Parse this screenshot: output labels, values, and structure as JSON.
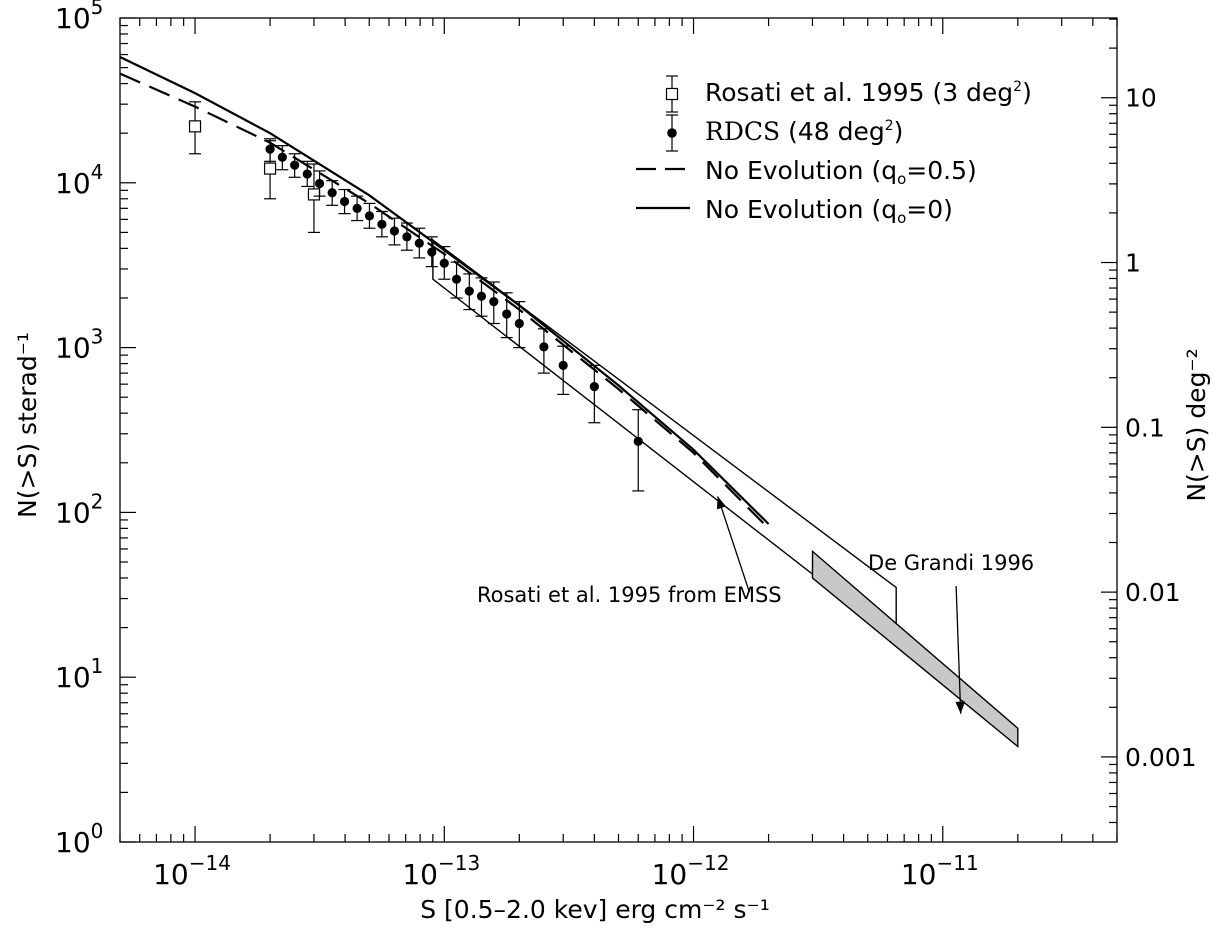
{
  "chart_data": {
    "type": "scatter",
    "x_scale": "log",
    "y_scale": "log",
    "xlim": [
      5e-15,
      5e-11
    ],
    "ylim": [
      1,
      100000
    ],
    "y2lim_deg": [
      0.000304617,
      30.4617
    ],
    "xlabel": "S [0.5–2.0 kev] erg cm⁻² s⁻¹",
    "ylabel": "N(>S) sterad⁻¹",
    "y2label": "N(>S) deg⁻²",
    "x_tick_labels": [
      {
        "value": 1e-14,
        "base": "10",
        "exp": "−14"
      },
      {
        "value": 1e-13,
        "base": "10",
        "exp": "−13"
      },
      {
        "value": 1e-12,
        "base": "10",
        "exp": "−12"
      },
      {
        "value": 1e-11,
        "base": "10",
        "exp": "−11"
      }
    ],
    "y_tick_labels": [
      {
        "value": 1,
        "base": "10",
        "exp": "0"
      },
      {
        "value": 10,
        "base": "10",
        "exp": "1"
      },
      {
        "value": 100,
        "base": "10",
        "exp": "2"
      },
      {
        "value": 1000,
        "base": "10",
        "exp": "3"
      },
      {
        "value": 10000,
        "base": "10",
        "exp": "4"
      },
      {
        "value": 100000,
        "base": "10",
        "exp": "5"
      }
    ],
    "y2_tick_labels": [
      {
        "value": 0.001,
        "label": "0.001"
      },
      {
        "value": 0.01,
        "label": "0.01"
      },
      {
        "value": 0.1,
        "label": "0.1"
      },
      {
        "value": 1,
        "label": "1"
      },
      {
        "value": 10,
        "label": "10"
      }
    ],
    "legend_position": "top-right",
    "legend": [
      {
        "label_main": "Rosati et al. 1995 (3 deg",
        "label_sup": "2",
        "label_end": ")",
        "marker": "open-square-errorbar"
      },
      {
        "label_serif": "RDCS",
        "label_main": " (48 deg",
        "label_sup": "2",
        "label_end": ")",
        "marker": "filled-circle-errorbar"
      },
      {
        "label_main": "No Evolution (q",
        "label_sub": "o",
        "label_end": "=0.5)",
        "line": "dashed"
      },
      {
        "label_main": "No Evolution (q",
        "label_sub": "o",
        "label_end": "=0)",
        "line": "solid"
      }
    ],
    "series": [
      {
        "name": "Rosati et al. 1995 (3 deg²)",
        "marker": "open-square",
        "points": [
          {
            "x": 1e-14,
            "y": 22000,
            "ylo": 15000,
            "yhi": 31000
          },
          {
            "x": 2e-14,
            "y": 12200,
            "ylo": 8000,
            "yhi": 18000
          },
          {
            "x": 3e-14,
            "y": 8500,
            "ylo": 5000,
            "yhi": 13000
          }
        ]
      },
      {
        "name": "RDCS (48 deg²)",
        "marker": "filled-circle",
        "points": [
          {
            "x": 2e-14,
            "y": 16000,
            "ylo": 13500,
            "yhi": 18500
          },
          {
            "x": 2.24e-14,
            "y": 14300,
            "ylo": 12000,
            "yhi": 16800
          },
          {
            "x": 2.51e-14,
            "y": 12800,
            "ylo": 10800,
            "yhi": 15000
          },
          {
            "x": 2.82e-14,
            "y": 11300,
            "ylo": 9500,
            "yhi": 13500
          },
          {
            "x": 3.16e-14,
            "y": 9900,
            "ylo": 8300,
            "yhi": 11800
          },
          {
            "x": 3.55e-14,
            "y": 8700,
            "ylo": 7300,
            "yhi": 10300
          },
          {
            "x": 3.98e-14,
            "y": 7700,
            "ylo": 6500,
            "yhi": 9100
          },
          {
            "x": 4.47e-14,
            "y": 7000,
            "ylo": 5900,
            "yhi": 8300
          },
          {
            "x": 5.01e-14,
            "y": 6300,
            "ylo": 5300,
            "yhi": 7500
          },
          {
            "x": 5.62e-14,
            "y": 5600,
            "ylo": 4700,
            "yhi": 6700
          },
          {
            "x": 6.31e-14,
            "y": 5100,
            "ylo": 4200,
            "yhi": 6100
          },
          {
            "x": 7.08e-14,
            "y": 4700,
            "ylo": 3900,
            "yhi": 5700
          },
          {
            "x": 7.94e-14,
            "y": 4300,
            "ylo": 3500,
            "yhi": 5300
          },
          {
            "x": 8.91e-14,
            "y": 3800,
            "ylo": 3100,
            "yhi": 4700
          },
          {
            "x": 1e-13,
            "y": 3250,
            "ylo": 2600,
            "yhi": 4100
          },
          {
            "x": 1.12e-13,
            "y": 2600,
            "ylo": 2000,
            "yhi": 3300
          },
          {
            "x": 1.26e-13,
            "y": 2200,
            "ylo": 1700,
            "yhi": 2800
          },
          {
            "x": 1.41e-13,
            "y": 2050,
            "ylo": 1550,
            "yhi": 2650
          },
          {
            "x": 1.58e-13,
            "y": 1900,
            "ylo": 1400,
            "yhi": 2500
          },
          {
            "x": 1.78e-13,
            "y": 1600,
            "ylo": 1150,
            "yhi": 2150
          },
          {
            "x": 2e-13,
            "y": 1400,
            "ylo": 1000,
            "yhi": 1900
          },
          {
            "x": 2.51e-13,
            "y": 1010,
            "ylo": 700,
            "yhi": 1300
          },
          {
            "x": 3e-13,
            "y": 780,
            "ylo": 520,
            "yhi": 1020
          },
          {
            "x": 4e-13,
            "y": 580,
            "ylo": 350,
            "yhi": 780
          },
          {
            "x": 6e-13,
            "y": 270,
            "ylo": 135,
            "yhi": 420
          }
        ]
      },
      {
        "name": "No Evolution (qo=0.5)",
        "line": "dashed",
        "points": [
          {
            "x": 5e-15,
            "y": 46000
          },
          {
            "x": 1e-14,
            "y": 29000
          },
          {
            "x": 2e-14,
            "y": 17500
          },
          {
            "x": 5e-14,
            "y": 7500
          },
          {
            "x": 1e-13,
            "y": 3700
          },
          {
            "x": 2e-13,
            "y": 1700
          },
          {
            "x": 5e-13,
            "y": 560
          },
          {
            "x": 1e-12,
            "y": 230
          },
          {
            "x": 2e-12,
            "y": 80
          }
        ]
      },
      {
        "name": "No Evolution (qo=0)",
        "line": "solid",
        "points": [
          {
            "x": 5e-15,
            "y": 58000
          },
          {
            "x": 1e-14,
            "y": 35000
          },
          {
            "x": 2e-14,
            "y": 20000
          },
          {
            "x": 5e-14,
            "y": 8400
          },
          {
            "x": 1e-13,
            "y": 3900
          },
          {
            "x": 2e-13,
            "y": 1800
          },
          {
            "x": 5e-13,
            "y": 590
          },
          {
            "x": 1e-12,
            "y": 240
          },
          {
            "x": 2e-12,
            "y": 85
          }
        ]
      }
    ],
    "bands": [
      {
        "name": "Rosati et al. 1995 from EMSS",
        "fill": "none",
        "polygon": [
          {
            "x": 9e-14,
            "y": 4500
          },
          {
            "x": 6.5e-12,
            "y": 35
          },
          {
            "x": 6.5e-12,
            "y": 17
          },
          {
            "x": 9e-14,
            "y": 2600
          }
        ]
      },
      {
        "name": "De Grandi 1996",
        "fill": "#c8c8c8",
        "polygon": [
          {
            "x": 3e-12,
            "y": 58
          },
          {
            "x": 2e-11,
            "y": 4.9
          },
          {
            "x": 2e-11,
            "y": 3.8
          },
          {
            "x": 3e-12,
            "y": 40
          }
        ]
      }
    ],
    "annotations": [
      {
        "text": "Rosati et al. 1995 from EMSS",
        "text_x": 2e-13,
        "text_y": 32,
        "arrow_to_x": 1.25e-12,
        "arrow_to_y": 125
      },
      {
        "text": "De Grandi 1996",
        "text_x": 1.08e-11,
        "text_y": 50,
        "arrow_to_x": 1.18e-11,
        "arrow_to_y": 6.0
      }
    ]
  }
}
